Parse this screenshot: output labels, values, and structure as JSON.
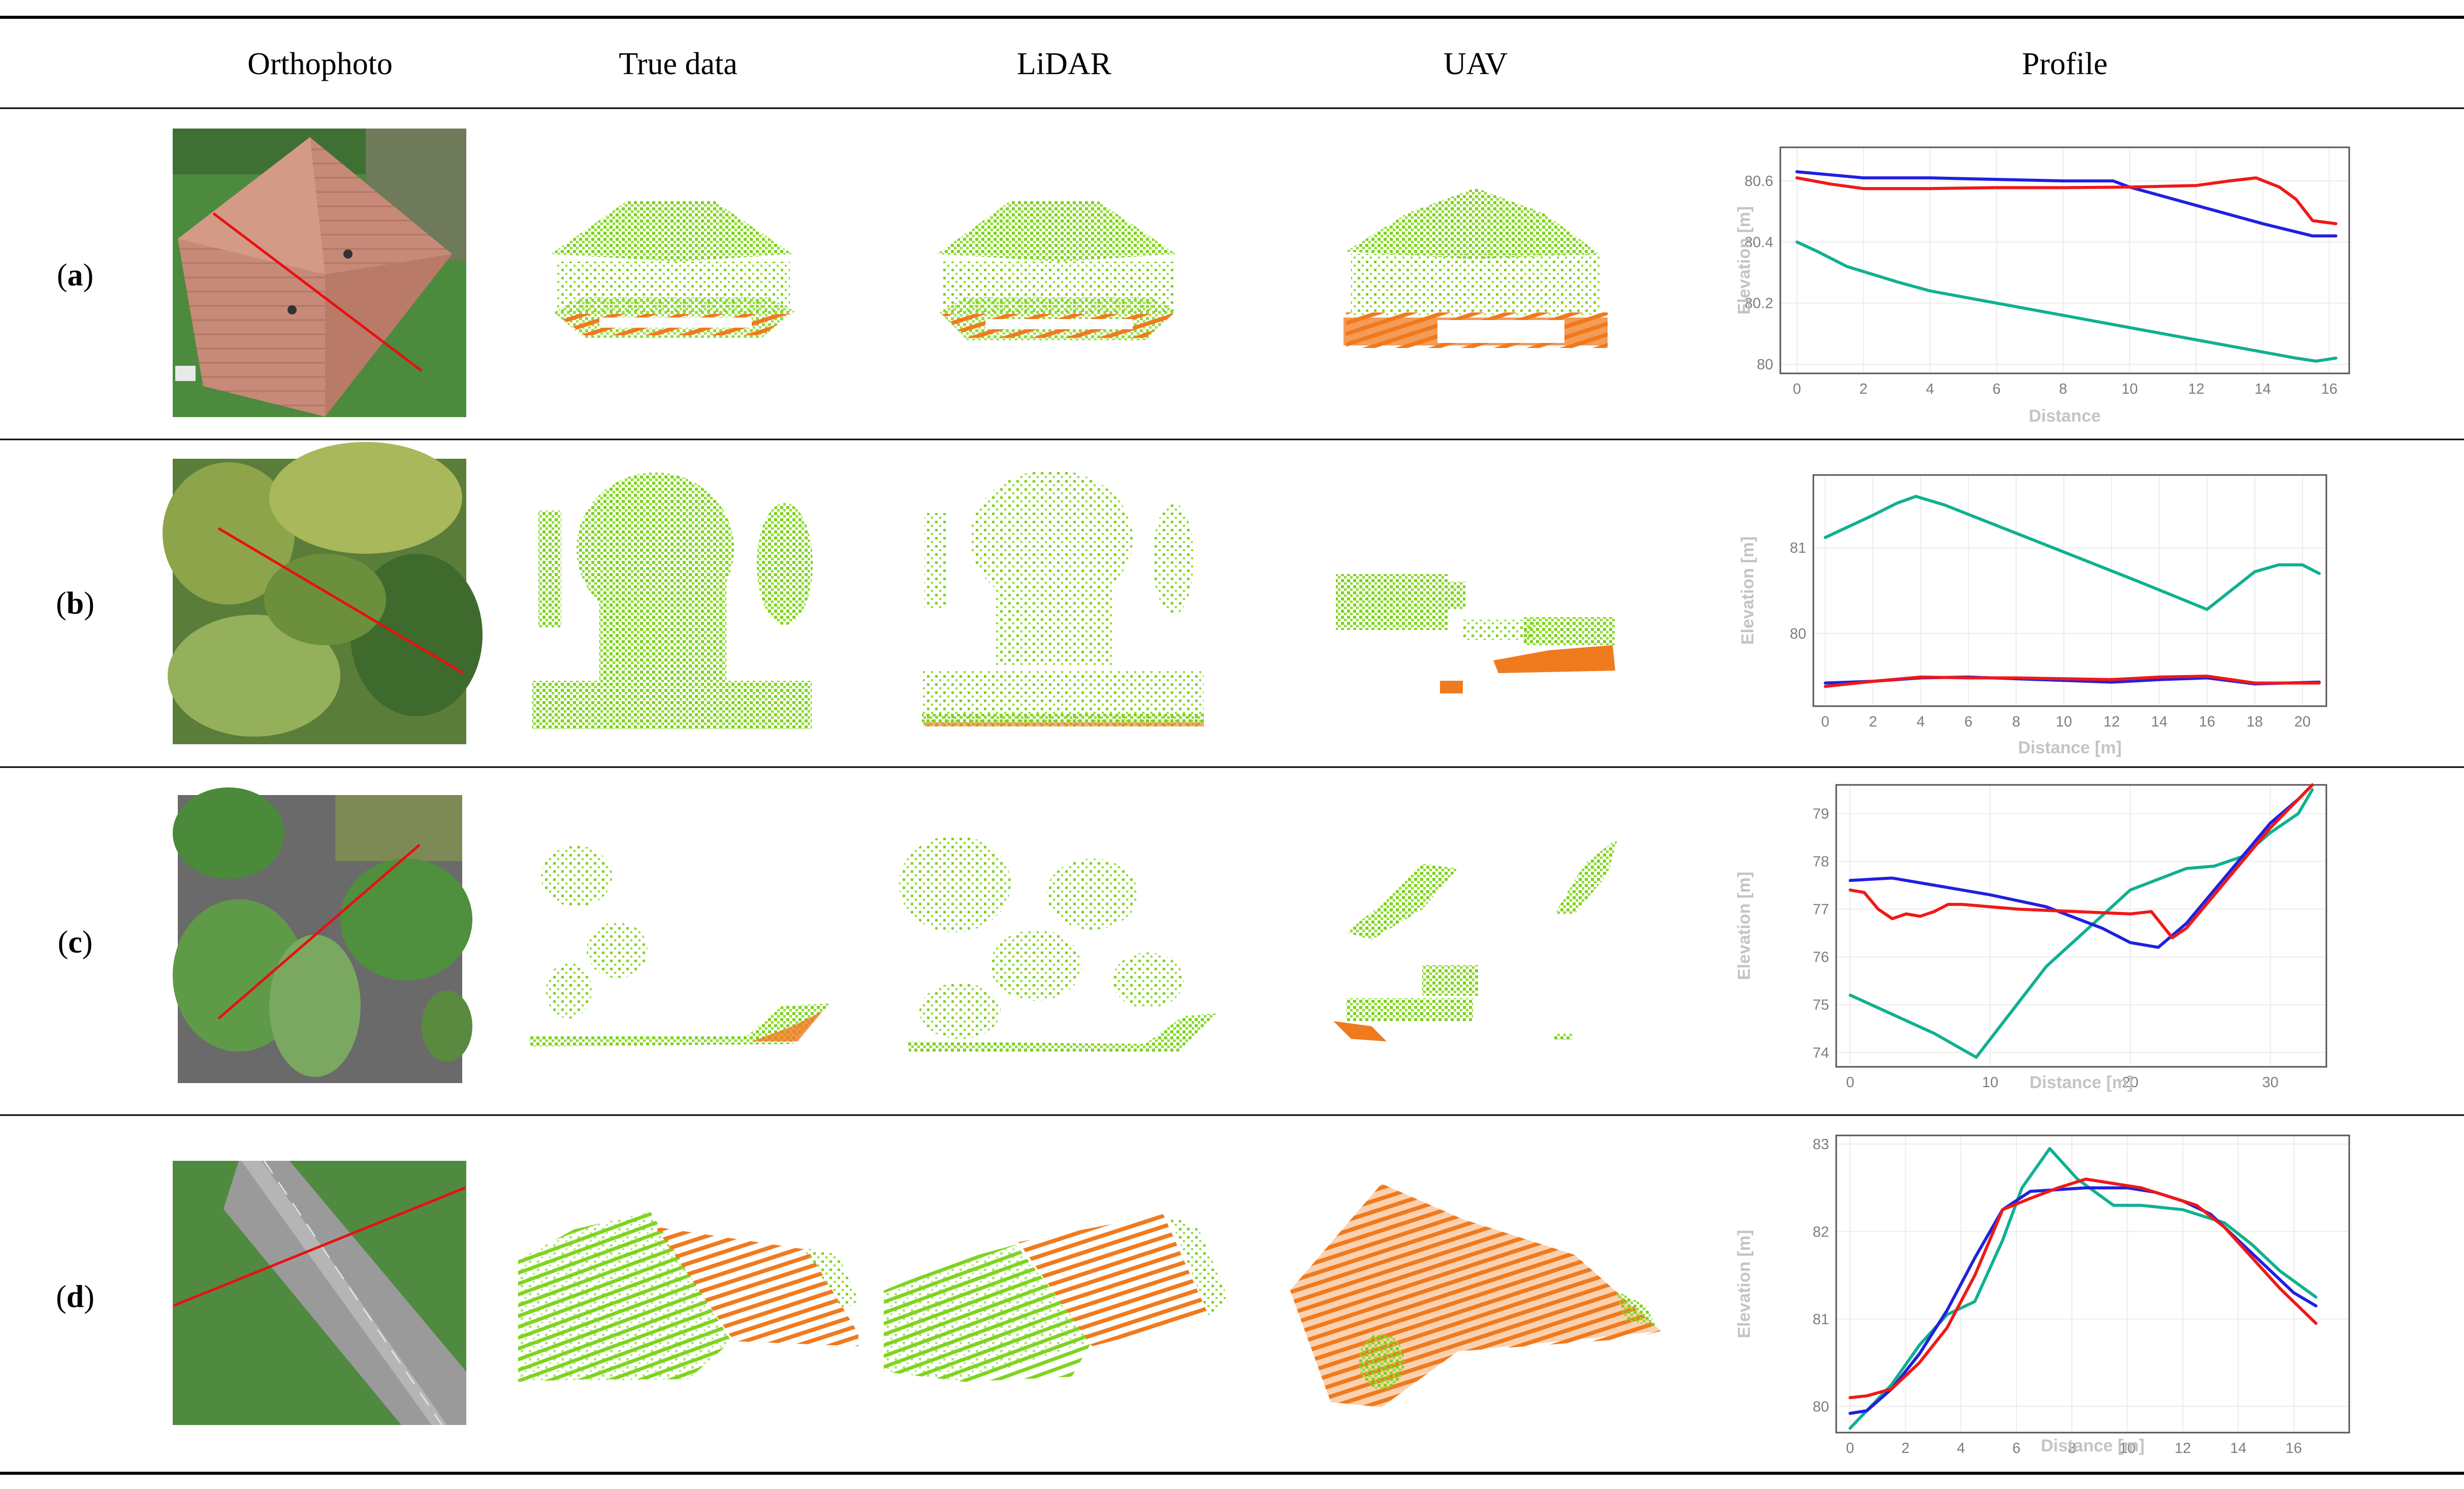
{
  "table": {
    "headers": [
      "Orthophoto",
      "True data",
      "LiDAR",
      "UAV",
      "Profile"
    ],
    "rows": [
      {
        "label_open": "(",
        "label": "a",
        "label_close": ")"
      },
      {
        "label_open": "(",
        "label": "b",
        "label_close": ")"
      },
      {
        "label_open": "(",
        "label": "c",
        "label_close": ")"
      },
      {
        "label_open": "(",
        "label": "d",
        "label_close": ")"
      }
    ]
  },
  "colors": {
    "blue": "#2020e0",
    "red": "#f01818",
    "teal": "#10b090",
    "vegetation": "#7ed321",
    "ground": "#f07a1e"
  },
  "chart_data": [
    {
      "type": "line",
      "xlabel": "Distance",
      "ylabel": "Elevation [m]",
      "xlim": [
        -0.5,
        16.6
      ],
      "ylim": [
        79.97,
        80.71
      ],
      "xticks": [
        0,
        2,
        4,
        6,
        8,
        10,
        12,
        14,
        16
      ],
      "yticks": [
        80,
        80.2,
        80.4,
        80.6
      ],
      "ytick_labels": [
        "80",
        "80.2",
        "80.4",
        "80.6"
      ],
      "series": [
        {
          "color": "#2020e0",
          "x": [
            0,
            2,
            4,
            6,
            8,
            9.5,
            10,
            12,
            14,
            15.5,
            16.2
          ],
          "y": [
            80.63,
            80.61,
            80.61,
            80.605,
            80.6,
            80.6,
            80.58,
            80.52,
            80.46,
            80.42,
            80.42
          ]
        },
        {
          "color": "#f01818",
          "x": [
            0,
            1,
            2,
            4,
            6,
            8,
            10,
            12,
            13,
            13.8,
            14.5,
            15,
            15.5,
            16.2
          ],
          "y": [
            80.61,
            80.59,
            80.575,
            80.575,
            80.578,
            80.578,
            80.58,
            80.585,
            80.6,
            80.61,
            80.58,
            80.54,
            80.47,
            80.46
          ]
        },
        {
          "color": "#10b090",
          "x": [
            0,
            0.6,
            1.5,
            3,
            4,
            6,
            8,
            10,
            12,
            14,
            15,
            15.6,
            16.2
          ],
          "y": [
            80.4,
            80.37,
            80.32,
            80.27,
            80.24,
            80.2,
            80.16,
            80.12,
            80.08,
            80.04,
            80.02,
            80.01,
            80.02
          ]
        }
      ]
    },
    {
      "type": "line",
      "xlabel": "Distance [m]",
      "ylabel": "Elevation [m]",
      "xlim": [
        -0.5,
        21.0
      ],
      "ylim": [
        79.15,
        81.85
      ],
      "xticks": [
        0,
        2,
        4,
        6,
        8,
        10,
        12,
        14,
        16,
        18,
        20
      ],
      "yticks": [
        80,
        81
      ],
      "ytick_labels": [
        "80",
        "81"
      ],
      "series": [
        {
          "color": "#2020e0",
          "x": [
            0,
            2,
            4,
            6,
            8,
            10,
            12,
            14,
            16,
            18,
            20.7
          ],
          "y": [
            79.42,
            79.44,
            79.48,
            79.49,
            79.47,
            79.45,
            79.43,
            79.46,
            79.48,
            79.41,
            79.43
          ]
        },
        {
          "color": "#f01818",
          "x": [
            0,
            2,
            4,
            6,
            8,
            10,
            12,
            14,
            16,
            18,
            20.7
          ],
          "y": [
            79.38,
            79.44,
            79.49,
            79.48,
            79.48,
            79.47,
            79.46,
            79.49,
            79.5,
            79.42,
            79.42
          ]
        },
        {
          "color": "#10b090",
          "x": [
            0,
            1,
            2,
            3,
            3.8,
            5,
            7,
            9,
            11,
            13,
            14.5,
            16,
            17,
            18,
            19,
            20,
            20.7
          ],
          "y": [
            81.12,
            81.25,
            81.38,
            81.52,
            81.6,
            81.5,
            81.28,
            81.06,
            80.84,
            80.62,
            80.45,
            80.28,
            80.5,
            80.72,
            80.8,
            80.8,
            80.7
          ]
        }
      ]
    },
    {
      "type": "line",
      "xlabel": "Distance [m]",
      "ylabel": "Elevation [m]",
      "xlim": [
        -1.0,
        34.0
      ],
      "ylim": [
        73.7,
        79.6
      ],
      "xticks": [
        0,
        10,
        20,
        30
      ],
      "yticks": [
        74,
        75,
        76,
        77,
        78,
        79
      ],
      "ytick_labels": [
        "74",
        "75",
        "76",
        "77",
        "78",
        "79"
      ],
      "series": [
        {
          "color": "#2020e0",
          "x": [
            0,
            3,
            6,
            10,
            14,
            18,
            20,
            22,
            24,
            26,
            28,
            30,
            32,
            33
          ],
          "y": [
            77.6,
            77.65,
            77.5,
            77.3,
            77.05,
            76.6,
            76.3,
            76.2,
            76.7,
            77.4,
            78.1,
            78.8,
            79.3,
            79.6
          ]
        },
        {
          "color": "#f01818",
          "x": [
            0,
            1,
            2,
            3,
            4,
            5,
            6,
            7,
            8,
            12,
            16,
            20,
            21.5,
            23,
            24,
            26,
            28,
            30,
            32,
            33
          ],
          "y": [
            77.4,
            77.35,
            77.0,
            76.8,
            76.9,
            76.85,
            76.95,
            77.1,
            77.1,
            77.0,
            76.95,
            76.9,
            76.95,
            76.4,
            76.6,
            77.3,
            78.0,
            78.7,
            79.3,
            79.6
          ]
        },
        {
          "color": "#10b090",
          "x": [
            0,
            3,
            6,
            9,
            14,
            20,
            24,
            26,
            28,
            30,
            32,
            33
          ],
          "y": [
            75.2,
            74.8,
            74.4,
            73.9,
            75.8,
            77.4,
            77.85,
            77.9,
            78.1,
            78.6,
            79.0,
            79.5
          ]
        }
      ]
    },
    {
      "type": "line",
      "xlabel": "Distance [m]",
      "ylabel": "Elevation [m]",
      "xlim": [
        -0.5,
        18.0
      ],
      "ylim": [
        79.7,
        83.1
      ],
      "xticks": [
        0,
        2,
        4,
        6,
        8,
        10,
        12,
        14,
        16
      ],
      "yticks": [
        80,
        81,
        82,
        83
      ],
      "ytick_labels": [
        "80",
        "81",
        "82",
        "83"
      ],
      "series": [
        {
          "color": "#2020e0",
          "x": [
            0,
            0.6,
            1.5,
            2.5,
            3.5,
            4.5,
            5.5,
            6.5,
            7.5,
            8.5,
            10,
            11,
            12,
            13,
            14,
            15,
            16,
            16.8
          ],
          "y": [
            79.92,
            79.95,
            80.2,
            80.6,
            81.1,
            81.7,
            82.25,
            82.46,
            82.48,
            82.5,
            82.5,
            82.45,
            82.35,
            82.2,
            81.9,
            81.6,
            81.3,
            81.15
          ]
        },
        {
          "color": "#f01818",
          "x": [
            0,
            0.6,
            1.5,
            2.5,
            3.5,
            4.5,
            5.5,
            6.5,
            7.5,
            8.5,
            9.5,
            10.5,
            11.5,
            12.5,
            13.5,
            14.5,
            15.5,
            16.8
          ],
          "y": [
            80.1,
            80.12,
            80.2,
            80.5,
            80.9,
            81.5,
            82.25,
            82.38,
            82.5,
            82.6,
            82.55,
            82.5,
            82.4,
            82.3,
            82.05,
            81.7,
            81.35,
            80.95
          ]
        },
        {
          "color": "#10b090",
          "x": [
            0,
            0.6,
            1.5,
            2.5,
            3.5,
            4.5,
            5.5,
            6.2,
            7.2,
            8.2,
            9.5,
            10.5,
            12,
            13.5,
            14.5,
            15.5,
            16.8
          ],
          "y": [
            79.75,
            79.95,
            80.25,
            80.7,
            81.05,
            81.2,
            81.9,
            82.5,
            82.95,
            82.6,
            82.3,
            82.3,
            82.25,
            82.1,
            81.85,
            81.55,
            81.25
          ]
        }
      ]
    }
  ]
}
